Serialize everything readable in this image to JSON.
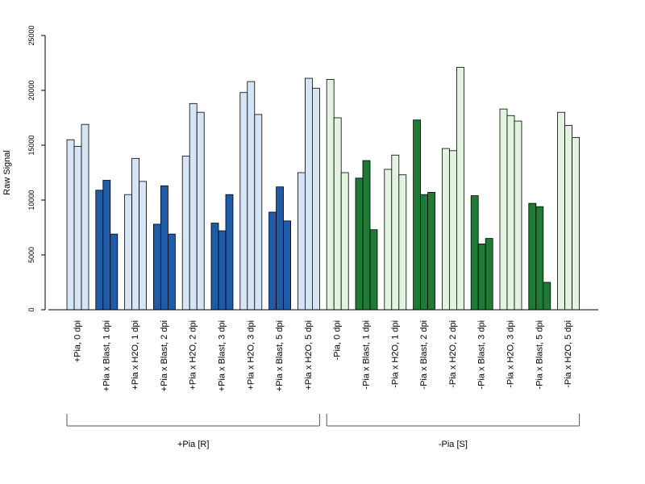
{
  "chart_data": {
    "type": "bar",
    "title": "",
    "ylabel": "Raw Signal",
    "xlabel": "",
    "ylim": [
      0,
      25000
    ],
    "yticks": [
      0,
      5000,
      10000,
      15000,
      20000,
      25000
    ],
    "grid": false,
    "categories": [
      "+Pia, 0 dpi",
      "+Pia x Blast, 1 dpi",
      "+Pia x H2O, 1 dpi",
      "+Pia x Blast, 2 dpi",
      "+Pia x H2O, 2 dpi",
      "+Pia x Blast, 3 dpi",
      "+Pia x H2O, 3 dpi",
      "+Pia x Blast, 5 dpi",
      "+Pia x H2O, 5 dpi",
      "-Pia, 0 dpi",
      "-Pia x Blast, 1 dpi",
      "-Pia x H2O, 1 dpi",
      "-Pia x Blast, 2 dpi",
      "-Pia x H2O, 2 dpi",
      "-Pia x Blast, 3 dpi",
      "-Pia x H2O, 3 dpi",
      "-Pia x Blast, 5 dpi",
      "-Pia x H2O, 5 dpi"
    ],
    "replicates": [
      [
        15500,
        14900,
        16900
      ],
      [
        10900,
        11800,
        6900
      ],
      [
        10500,
        13800,
        11700
      ],
      [
        7800,
        11300,
        6900
      ],
      [
        14000,
        18800,
        18000
      ],
      [
        7900,
        7200,
        10500
      ],
      [
        19800,
        20800,
        17800
      ],
      [
        8900,
        11200,
        8100
      ],
      [
        12500,
        21100,
        20200
      ],
      [
        21000,
        17500,
        12500
      ],
      [
        12000,
        13600,
        7300
      ],
      [
        12800,
        14100,
        12300
      ],
      [
        17300,
        10500,
        10700
      ],
      [
        14700,
        14500,
        22100
      ],
      [
        10400,
        6000,
        6500
      ],
      [
        18300,
        17700,
        17200
      ],
      [
        9700,
        9400,
        2500
      ],
      [
        18000,
        16800,
        15700
      ]
    ],
    "bar_colors": [
      "#d6e5f5",
      "#1f5ba6",
      "#d6e5f5",
      "#1f5ba6",
      "#d6e5f5",
      "#1f5ba6",
      "#d6e5f5",
      "#1f5ba6",
      "#d6e5f5",
      "#e2f4df",
      "#1e7a34",
      "#e2f4df",
      "#1e7a34",
      "#e2f4df",
      "#1e7a34",
      "#e2f4df",
      "#1e7a34",
      "#e2f4df"
    ],
    "groups": [
      {
        "label": "+Pia [R]",
        "start": 0,
        "end": 8
      },
      {
        "label": "-Pia [S]",
        "start": 9,
        "end": 17
      }
    ]
  }
}
